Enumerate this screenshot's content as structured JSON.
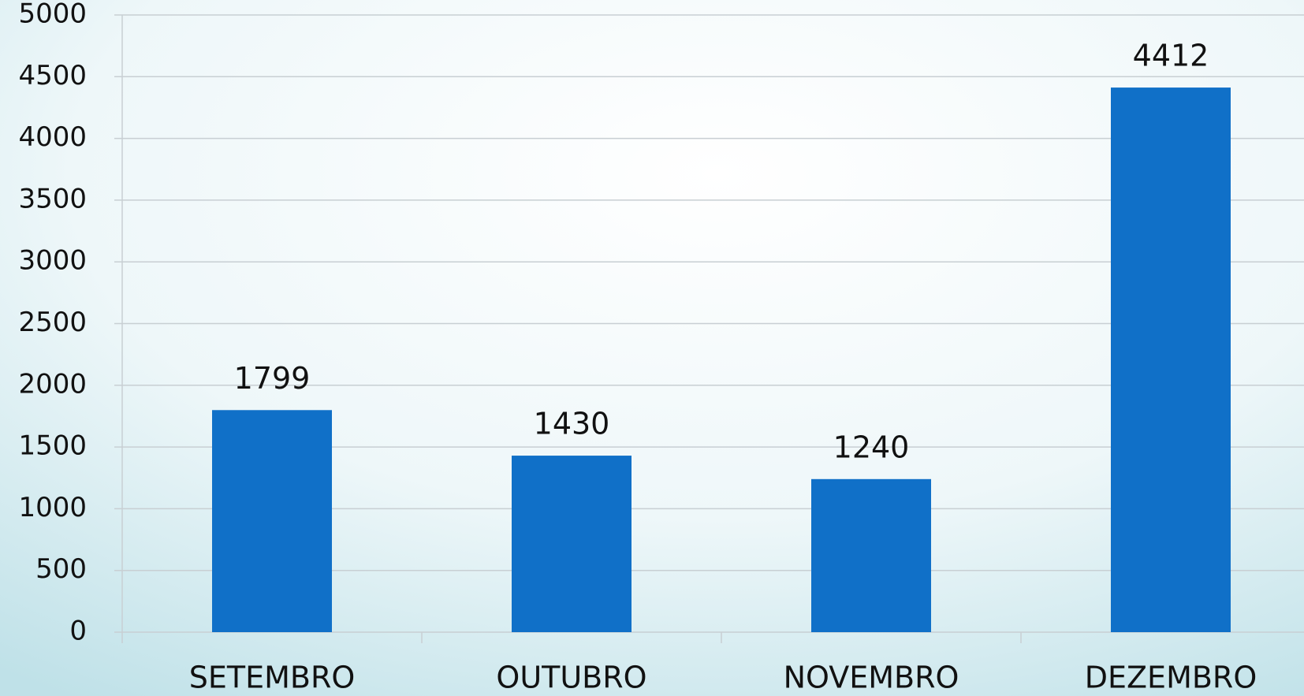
{
  "chart_data": {
    "type": "bar",
    "categories": [
      "SETEMBRO",
      "OUTUBRO",
      "NOVEMBRO",
      "DEZEMBRO"
    ],
    "values": [
      1799,
      1430,
      1240,
      4412
    ],
    "color": "#1070c8",
    "ylim": [
      0,
      5000
    ],
    "yticks": [
      0,
      500,
      1000,
      1500,
      2000,
      2500,
      3000,
      3500,
      4000,
      4500,
      5000
    ],
    "grid": true
  }
}
